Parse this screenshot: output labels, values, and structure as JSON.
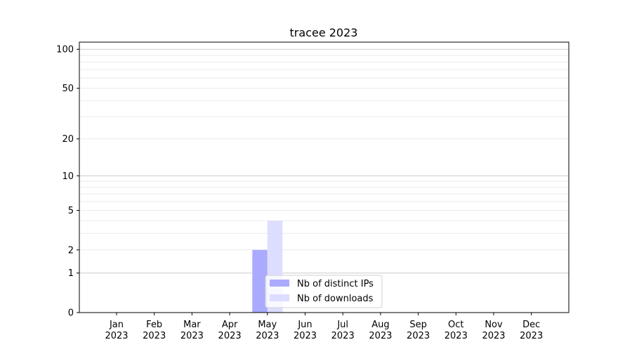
{
  "chart_data": {
    "type": "bar",
    "title": "tracee 2023",
    "xlabel": "",
    "ylabel": "",
    "yscale": "log(1+y)",
    "ylim": [
      0,
      113
    ],
    "yticks": [
      0,
      1,
      2,
      5,
      10,
      20,
      50,
      100
    ],
    "grid": true,
    "legend_position": "bottom-center",
    "categories": [
      "Jan\n2023",
      "Feb\n2023",
      "Mar\n2023",
      "Apr\n2023",
      "May\n2023",
      "Jun\n2023",
      "Jul\n2023",
      "Aug\n2023",
      "Sep\n2023",
      "Oct\n2023",
      "Nov\n2023",
      "Dec\n2023"
    ],
    "series": [
      {
        "name": "Nb of distinct IPs",
        "color": "#aaaaff",
        "values": [
          0,
          0,
          0,
          0,
          2,
          0,
          0,
          0,
          0,
          0,
          0,
          0
        ]
      },
      {
        "name": "Nb of downloads",
        "color": "#ddddff",
        "values": [
          0,
          0,
          0,
          0,
          4,
          0,
          0,
          0,
          0,
          0,
          0,
          0
        ]
      }
    ]
  }
}
